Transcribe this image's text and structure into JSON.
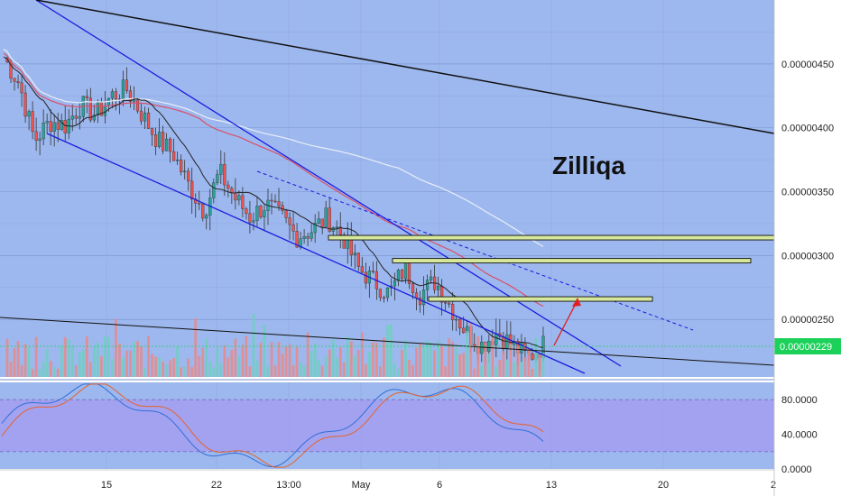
{
  "chart_data": [
    {
      "type": "candlestick",
      "title": "",
      "annotation": "Zilliqa",
      "x_tick_labels": [
        "15",
        "22",
        "13:00",
        "May",
        "6",
        "13",
        "20",
        "2"
      ],
      "y_tick_labels": [
        "0.00000450",
        "0.00000400",
        "0.00000350",
        "0.00000300",
        "0.00000250"
      ],
      "ylim": [
        2.05e-06,
        5e-06
      ],
      "last_price": "0.00000229",
      "grid": true,
      "colors": {
        "background": "#9db8ee",
        "up": "#26a69a",
        "down": "#ef5350",
        "channel": "#1a1ae0",
        "trendline": "#111111",
        "ma_black": "#222222",
        "ma_red": "#d9506a",
        "ma_white": "#e8eef8",
        "resistance_box": "#d6e89a",
        "target_arrow": "#e02020",
        "last_price": "#1bd15a"
      },
      "price_path": [
        4.55e-06,
        4.35e-06,
        3.9e-06,
        4.05e-06,
        4.02e-06,
        4.18e-06,
        4.1e-06,
        4.25e-06,
        4.3e-06,
        4.1e-06,
        3.9e-06,
        3.8e-06,
        3.55e-06,
        3.35e-06,
        3.65e-06,
        3.45e-06,
        3.3e-06,
        3.4e-06,
        3.3e-06,
        3.15e-06,
        3.2e-06,
        3.3e-06,
        3.15e-06,
        2.9e-06,
        2.8e-06,
        2.7e-06,
        2.9e-06,
        2.7e-06,
        2.8e-06,
        2.6e-06,
        2.4e-06,
        2.3e-06,
        2.4e-06,
        2.3e-06,
        2.2e-06,
        2.3e-06
      ],
      "resistance_levels": [
        3.14e-06,
        2.96e-06,
        2.66e-06
      ],
      "volume": "histogram"
    },
    {
      "type": "line",
      "title": "",
      "indicator": "stochastic",
      "y_tick_labels": [
        "80.0000",
        "40.0000",
        "0.0000"
      ],
      "ylim": [
        0,
        100
      ],
      "band": [
        20,
        80
      ],
      "series": [
        {
          "name": "",
          "color": "#2f6fd6"
        },
        {
          "name": "",
          "color": "#e5632c"
        }
      ]
    }
  ]
}
